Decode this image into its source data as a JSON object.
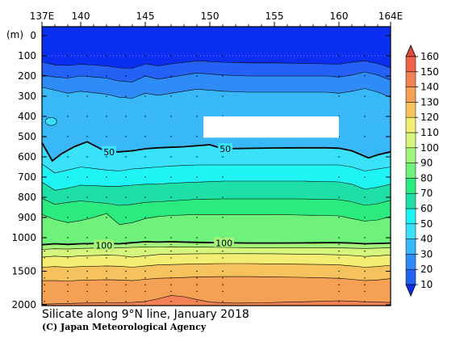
{
  "chart_data": {
    "type": "heatmap",
    "title": "Silicate along 9°N line, January 2018",
    "credit": "(C) Japan Meteorological Agency",
    "x_ticks": [
      "137E",
      "140",
      "145",
      "150",
      "155",
      "160",
      "164E"
    ],
    "x_tick_values": [
      137,
      140,
      145,
      150,
      155,
      160,
      164
    ],
    "xlim": [
      137,
      164
    ],
    "y_unit": "(m)",
    "y_ticks": [
      "0",
      "100",
      "200",
      "300",
      "400",
      "500",
      "600",
      "700",
      "800",
      "900",
      "1000",
      "1500",
      "2000"
    ],
    "y_tick_values": [
      0,
      100,
      200,
      300,
      400,
      500,
      600,
      700,
      800,
      900,
      1000,
      1500,
      2000
    ],
    "ylim": [
      0,
      2000
    ],
    "colorbar_levels": [
      "10",
      "20",
      "30",
      "40",
      "50",
      "60",
      "70",
      "80",
      "90",
      "100",
      "110",
      "120",
      "130",
      "140",
      "150",
      "160"
    ],
    "colorbar_colors": [
      "#0b2ff0",
      "#2461f5",
      "#2f8cf7",
      "#38b8f6",
      "#39e2f8",
      "#1ff4f4",
      "#1ee0a6",
      "#2ceb7e",
      "#6ef27b",
      "#a4f47a",
      "#d6f57c",
      "#f3ee73",
      "#f6c25e",
      "#f5a155",
      "#f28255",
      "#ee6446",
      "#e04a36"
    ],
    "contour_labels": [
      {
        "text": "50",
        "lon": 142.2,
        "depth": 575
      },
      {
        "text": "50",
        "lon": 151.2,
        "depth": 560
      },
      {
        "text": "100",
        "lon": 141.8,
        "depth": 1115
      },
      {
        "text": "100",
        "lon": 151.1,
        "depth": 1080
      }
    ],
    "contour_levels": [
      10,
      20,
      30,
      40,
      50,
      60,
      70,
      80,
      90,
      100,
      110,
      120,
      130,
      140,
      150,
      160
    ],
    "bold_contours": [
      50,
      100
    ],
    "masked_region": {
      "lon": [
        149.5,
        160
      ],
      "depth": [
        400,
        505
      ]
    },
    "stations_lon": [
      137.2,
      139,
      140.5,
      142,
      143.5,
      145,
      147,
      149,
      151,
      160,
      162
    ],
    "isolines": [
      {
        "level": 20,
        "lons": [
          137,
          138,
          139,
          140,
          142,
          143,
          144,
          145,
          146,
          147,
          149,
          151,
          153,
          155,
          157,
          159,
          160,
          161,
          162,
          163,
          164
        ],
        "depths": [
          130,
          145,
          148,
          142,
          150,
          160,
          162,
          140,
          150,
          140,
          125,
          132,
          135,
          135,
          137,
          140,
          142,
          132,
          125,
          138,
          160
        ]
      },
      {
        "level": 30,
        "lons": [
          137,
          138,
          139,
          140,
          142,
          143,
          144,
          145,
          146,
          147,
          149,
          151,
          153,
          155,
          157,
          159,
          160,
          161,
          162,
          163,
          164
        ],
        "depths": [
          195,
          205,
          210,
          200,
          210,
          225,
          230,
          200,
          215,
          205,
          185,
          195,
          200,
          200,
          200,
          200,
          205,
          195,
          180,
          195,
          220
        ]
      },
      {
        "level": 40,
        "lons": [
          137,
          138,
          139,
          140,
          142,
          143,
          144,
          145,
          146,
          147,
          149,
          151,
          153,
          155,
          157,
          159,
          160,
          161,
          162,
          163,
          164
        ],
        "depths": [
          255,
          270,
          285,
          275,
          290,
          305,
          310,
          285,
          295,
          285,
          265,
          275,
          280,
          280,
          280,
          280,
          285,
          275,
          262,
          280,
          305
        ]
      },
      {
        "level": 50,
        "lons": [
          137,
          137.8,
          138.5,
          139.5,
          140.5,
          142,
          143,
          144,
          145,
          146,
          148,
          150,
          151,
          153,
          155,
          157,
          159,
          160,
          161,
          162.3,
          163,
          164
        ],
        "depths": [
          530,
          620,
          585,
          550,
          525,
          575,
          575,
          570,
          560,
          555,
          550,
          540,
          560,
          558,
          556,
          555,
          555,
          557,
          570,
          605,
          590,
          575
        ]
      },
      {
        "level": 60,
        "lons": [
          137,
          138,
          139,
          140,
          142,
          143,
          144,
          145,
          146,
          147,
          149,
          151,
          153,
          155,
          157,
          159,
          160,
          161,
          162,
          163,
          164
        ],
        "depths": [
          635,
          680,
          665,
          650,
          665,
          670,
          660,
          655,
          650,
          645,
          640,
          640,
          640,
          640,
          640,
          640,
          640,
          650,
          670,
          660,
          650
        ]
      },
      {
        "level": 70,
        "lons": [
          137,
          138,
          139,
          140,
          142,
          143,
          144,
          145,
          146,
          147,
          149,
          151,
          153,
          155,
          157,
          159,
          160,
          161,
          162,
          163,
          164
        ],
        "depths": [
          725,
          765,
          755,
          740,
          745,
          745,
          740,
          735,
          735,
          730,
          725,
          720,
          720,
          720,
          720,
          722,
          724,
          735,
          760,
          750,
          735
        ]
      },
      {
        "level": 80,
        "lons": [
          137,
          138,
          139,
          140,
          142,
          143,
          144,
          145,
          146,
          147,
          149,
          151,
          153,
          155,
          157,
          159,
          160,
          161,
          162,
          163,
          164
        ],
        "depths": [
          805,
          835,
          825,
          818,
          830,
          840,
          835,
          825,
          822,
          818,
          810,
          808,
          808,
          808,
          808,
          810,
          812,
          822,
          840,
          832,
          815
        ]
      },
      {
        "level": 90,
        "lons": [
          137,
          138,
          139,
          140,
          141,
          142,
          143,
          144,
          145,
          146,
          147,
          149,
          151,
          153,
          155,
          157,
          159,
          160,
          161,
          162,
          163,
          164
        ],
        "depths": [
          885,
          910,
          925,
          915,
          900,
          880,
          935,
          925,
          905,
          895,
          890,
          885,
          885,
          885,
          885,
          888,
          890,
          892,
          905,
          918,
          912,
          895
        ]
      },
      {
        "level": 100,
        "lons": [
          137,
          138,
          139,
          140,
          142,
          143,
          144,
          145,
          146,
          147,
          149,
          151,
          153,
          155,
          157,
          159,
          160,
          161,
          162,
          163,
          164
        ],
        "depths": [
          1105,
          1090,
          1100,
          1090,
          1085,
          1090,
          1075,
          1060,
          1065,
          1060,
          1070,
          1075,
          1080,
          1080,
          1078,
          1075,
          1075,
          1080,
          1090,
          1085,
          1080
        ]
      },
      {
        "level": 110,
        "lons": [
          137,
          138,
          139,
          140,
          142,
          143,
          144,
          145,
          146,
          147,
          149,
          151,
          153,
          155,
          157,
          159,
          160,
          161,
          162,
          163,
          164
        ],
        "depths": [
          1175,
          1165,
          1170,
          1160,
          1150,
          1150,
          1145,
          1140,
          1138,
          1135,
          1140,
          1145,
          1148,
          1150,
          1150,
          1150,
          1152,
          1155,
          1160,
          1155,
          1150
        ]
      },
      {
        "level": 120,
        "lons": [
          137,
          138,
          139,
          140,
          142,
          143,
          144,
          145,
          146,
          147,
          149,
          151,
          153,
          155,
          157,
          159,
          160,
          161,
          162,
          163,
          164
        ],
        "depths": [
          1290,
          1275,
          1285,
          1270,
          1260,
          1265,
          1290,
          1270,
          1250,
          1245,
          1240,
          1238,
          1238,
          1240,
          1245,
          1250,
          1255,
          1265,
          1280,
          1270,
          1255
        ]
      },
      {
        "level": 130,
        "lons": [
          137,
          138,
          139,
          140,
          142,
          143,
          144,
          145,
          146,
          147,
          149,
          151,
          153,
          155,
          157,
          159,
          160,
          161,
          162,
          163,
          164
        ],
        "depths": [
          1440,
          1430,
          1440,
          1430,
          1420,
          1425,
          1440,
          1420,
          1405,
          1400,
          1390,
          1385,
          1385,
          1390,
          1395,
          1400,
          1405,
          1420,
          1440,
          1430,
          1410
        ]
      },
      {
        "level": 140,
        "lons": [
          137,
          138,
          139,
          140,
          142,
          143,
          144,
          145,
          146,
          147,
          149,
          151,
          153,
          155,
          157,
          159,
          160,
          161,
          162,
          163,
          164
        ],
        "depths": [
          1640,
          1640,
          1645,
          1635,
          1625,
          1630,
          1640,
          1620,
          1605,
          1600,
          1585,
          1580,
          1580,
          1585,
          1590,
          1600,
          1605,
          1620,
          1640,
          1630,
          1610
        ]
      },
      {
        "level": 150,
        "lons": [
          137,
          138,
          140,
          142,
          144,
          145,
          146,
          147,
          148,
          149,
          150,
          152,
          154,
          156,
          158,
          160,
          161,
          162,
          163,
          164
        ],
        "depths": [
          1990,
          1985,
          1975,
          1970,
          1965,
          1950,
          1910,
          1860,
          1880,
          1920,
          1960,
          1975,
          1970,
          1960,
          1950,
          1940,
          1945,
          1955,
          1960,
          1965
        ]
      }
    ]
  }
}
